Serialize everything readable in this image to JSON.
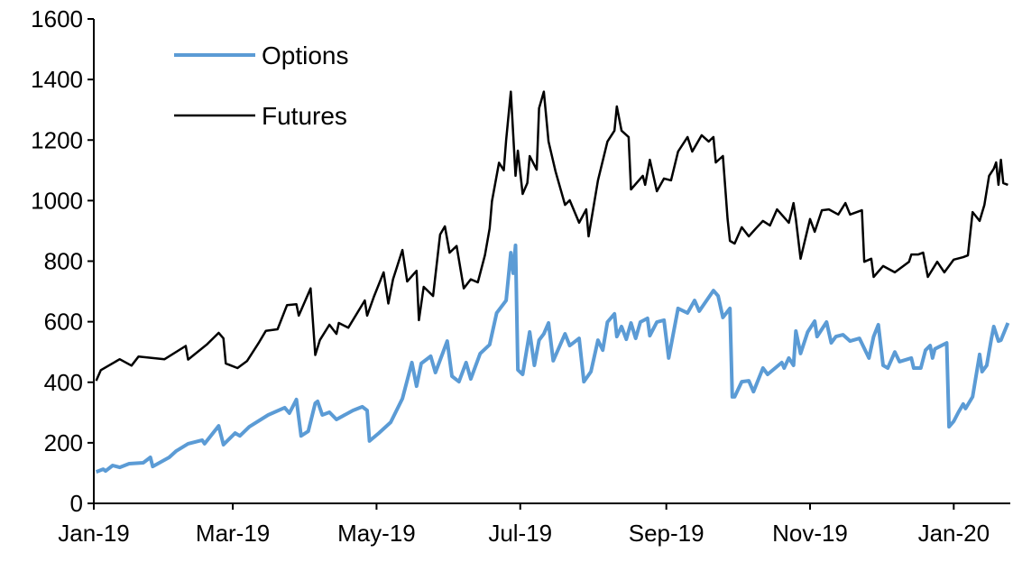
{
  "chart_data": {
    "type": "line",
    "title": "",
    "xlabel": "",
    "ylabel": "",
    "ylim": [
      0,
      1600
    ],
    "yticks": [
      "0",
      "200",
      "400",
      "600",
      "800",
      "1000",
      "1200",
      "1400",
      "1600"
    ],
    "xlim": [
      "2019-01-01",
      "2020-01-25"
    ],
    "xticks": [
      {
        "label": "Jan-19",
        "date": "2019-01-01"
      },
      {
        "label": "Mar-19",
        "date": "2019-03-01"
      },
      {
        "label": "May-19",
        "date": "2019-05-01"
      },
      {
        "label": "Jul-19",
        "date": "2019-07-01"
      },
      {
        "label": "Sep-19",
        "date": "2019-09-01"
      },
      {
        "label": "Nov-19",
        "date": "2019-11-01"
      },
      {
        "label": "Jan-20",
        "date": "2020-01-01"
      }
    ],
    "grid": false,
    "legend_placement": "top-left",
    "series": [
      {
        "name": "Options",
        "color": "#5B9BD5",
        "points": [
          [
            "2019-01-02",
            104
          ],
          [
            "2019-01-05",
            113
          ],
          [
            "2019-01-06",
            107
          ],
          [
            "2019-01-09",
            125
          ],
          [
            "2019-01-12",
            119
          ],
          [
            "2019-01-16",
            131
          ],
          [
            "2019-01-22",
            134
          ],
          [
            "2019-01-25",
            152
          ],
          [
            "2019-01-26",
            122
          ],
          [
            "2019-02-02",
            152
          ],
          [
            "2019-02-05",
            173
          ],
          [
            "2019-02-10",
            197
          ],
          [
            "2019-02-16",
            209
          ],
          [
            "2019-02-17",
            197
          ],
          [
            "2019-02-23",
            256
          ],
          [
            "2019-02-25",
            194
          ],
          [
            "2019-03-02",
            232
          ],
          [
            "2019-03-04",
            223
          ],
          [
            "2019-03-08",
            253
          ],
          [
            "2019-03-16",
            292
          ],
          [
            "2019-03-23",
            316
          ],
          [
            "2019-03-25",
            298
          ],
          [
            "2019-03-28",
            343
          ],
          [
            "2019-03-30",
            223
          ],
          [
            "2019-04-02",
            238
          ],
          [
            "2019-04-05",
            331
          ],
          [
            "2019-04-06",
            337
          ],
          [
            "2019-04-08",
            292
          ],
          [
            "2019-04-11",
            301
          ],
          [
            "2019-04-14",
            277
          ],
          [
            "2019-04-21",
            307
          ],
          [
            "2019-04-25",
            319
          ],
          [
            "2019-04-27",
            307
          ],
          [
            "2019-04-28",
            206
          ],
          [
            "2019-05-02",
            232
          ],
          [
            "2019-05-07",
            268
          ],
          [
            "2019-05-12",
            346
          ],
          [
            "2019-05-16",
            465
          ],
          [
            "2019-05-18",
            387
          ],
          [
            "2019-05-20",
            462
          ],
          [
            "2019-05-24",
            486
          ],
          [
            "2019-05-26",
            432
          ],
          [
            "2019-05-31",
            536
          ],
          [
            "2019-06-02",
            420
          ],
          [
            "2019-06-05",
            402
          ],
          [
            "2019-06-08",
            465
          ],
          [
            "2019-06-10",
            411
          ],
          [
            "2019-06-14",
            495
          ],
          [
            "2019-06-18",
            524
          ],
          [
            "2019-06-21",
            629
          ],
          [
            "2019-06-25",
            670
          ],
          [
            "2019-06-27",
            828
          ],
          [
            "2019-06-28",
            760
          ],
          [
            "2019-06-29",
            852
          ],
          [
            "2019-06-30",
            441
          ],
          [
            "2019-07-02",
            426
          ],
          [
            "2019-07-05",
            566
          ],
          [
            "2019-07-07",
            456
          ],
          [
            "2019-07-09",
            539
          ],
          [
            "2019-07-11",
            560
          ],
          [
            "2019-07-13",
            596
          ],
          [
            "2019-07-15",
            471
          ],
          [
            "2019-07-20",
            560
          ],
          [
            "2019-07-22",
            521
          ],
          [
            "2019-07-26",
            545
          ],
          [
            "2019-07-28",
            402
          ],
          [
            "2019-07-31",
            435
          ],
          [
            "2019-08-03",
            539
          ],
          [
            "2019-08-05",
            506
          ],
          [
            "2019-08-07",
            599
          ],
          [
            "2019-08-10",
            626
          ],
          [
            "2019-08-11",
            551
          ],
          [
            "2019-08-13",
            584
          ],
          [
            "2019-08-15",
            542
          ],
          [
            "2019-08-17",
            596
          ],
          [
            "2019-08-19",
            545
          ],
          [
            "2019-08-21",
            599
          ],
          [
            "2019-08-24",
            611
          ],
          [
            "2019-08-25",
            554
          ],
          [
            "2019-08-28",
            599
          ],
          [
            "2019-08-31",
            605
          ],
          [
            "2019-09-02",
            480
          ],
          [
            "2019-09-06",
            644
          ],
          [
            "2019-09-10",
            629
          ],
          [
            "2019-09-13",
            670
          ],
          [
            "2019-09-15",
            635
          ],
          [
            "2019-09-21",
            703
          ],
          [
            "2019-09-23",
            685
          ],
          [
            "2019-09-25",
            614
          ],
          [
            "2019-09-28",
            644
          ],
          [
            "2019-09-29",
            352
          ],
          [
            "2019-09-30",
            352
          ],
          [
            "2019-10-03",
            402
          ],
          [
            "2019-10-06",
            405
          ],
          [
            "2019-10-08",
            369
          ],
          [
            "2019-10-12",
            447
          ],
          [
            "2019-10-14",
            426
          ],
          [
            "2019-10-20",
            465
          ],
          [
            "2019-10-21",
            447
          ],
          [
            "2019-10-23",
            480
          ],
          [
            "2019-10-25",
            456
          ],
          [
            "2019-10-26",
            569
          ],
          [
            "2019-10-28",
            495
          ],
          [
            "2019-10-31",
            566
          ],
          [
            "2019-11-03",
            602
          ],
          [
            "2019-11-04",
            551
          ],
          [
            "2019-11-08",
            599
          ],
          [
            "2019-11-10",
            530
          ],
          [
            "2019-11-12",
            551
          ],
          [
            "2019-11-15",
            557
          ],
          [
            "2019-11-18",
            536
          ],
          [
            "2019-11-22",
            545
          ],
          [
            "2019-11-26",
            480
          ],
          [
            "2019-11-28",
            551
          ],
          [
            "2019-11-30",
            590
          ],
          [
            "2019-12-02",
            456
          ],
          [
            "2019-12-04",
            447
          ],
          [
            "2019-12-07",
            500
          ],
          [
            "2019-12-09",
            468
          ],
          [
            "2019-12-14",
            480
          ],
          [
            "2019-12-15",
            447
          ],
          [
            "2019-12-18",
            447
          ],
          [
            "2019-12-20",
            506
          ],
          [
            "2019-12-22",
            521
          ],
          [
            "2019-12-23",
            480
          ],
          [
            "2019-12-24",
            510
          ],
          [
            "2019-12-29",
            530
          ],
          [
            "2019-12-30",
            253
          ],
          [
            "2020-01-01",
            271
          ],
          [
            "2020-01-03",
            301
          ],
          [
            "2020-01-05",
            328
          ],
          [
            "2020-01-06",
            313
          ],
          [
            "2020-01-09",
            352
          ],
          [
            "2020-01-12",
            492
          ],
          [
            "2020-01-13",
            435
          ],
          [
            "2020-01-15",
            456
          ],
          [
            "2020-01-17",
            545
          ],
          [
            "2020-01-18",
            584
          ],
          [
            "2020-01-20",
            536
          ],
          [
            "2020-01-21",
            539
          ],
          [
            "2020-01-24",
            596
          ]
        ]
      },
      {
        "name": "Futures",
        "color": "#000000",
        "points": [
          [
            "2019-01-02",
            405
          ],
          [
            "2019-01-04",
            440
          ],
          [
            "2019-01-12",
            476
          ],
          [
            "2019-01-17",
            455
          ],
          [
            "2019-01-20",
            485
          ],
          [
            "2019-01-31",
            476
          ],
          [
            "2019-02-09",
            520
          ],
          [
            "2019-02-10",
            475
          ],
          [
            "2019-02-18",
            525
          ],
          [
            "2019-02-23",
            563
          ],
          [
            "2019-02-25",
            545
          ],
          [
            "2019-02-26",
            462
          ],
          [
            "2019-03-03",
            447
          ],
          [
            "2019-03-07",
            470
          ],
          [
            "2019-03-12",
            530
          ],
          [
            "2019-03-15",
            570
          ],
          [
            "2019-03-20",
            575
          ],
          [
            "2019-03-24",
            655
          ],
          [
            "2019-03-28",
            658
          ],
          [
            "2019-03-29",
            620
          ],
          [
            "2019-04-03",
            710
          ],
          [
            "2019-04-05",
            490
          ],
          [
            "2019-04-07",
            540
          ],
          [
            "2019-04-11",
            590
          ],
          [
            "2019-04-14",
            560
          ],
          [
            "2019-04-15",
            596
          ],
          [
            "2019-04-19",
            580
          ],
          [
            "2019-04-26",
            670
          ],
          [
            "2019-04-27",
            620
          ],
          [
            "2019-04-30",
            685
          ],
          [
            "2019-05-04",
            763
          ],
          [
            "2019-05-06",
            660
          ],
          [
            "2019-05-08",
            740
          ],
          [
            "2019-05-12",
            837
          ],
          [
            "2019-05-14",
            733
          ],
          [
            "2019-05-18",
            768
          ],
          [
            "2019-05-19",
            605
          ],
          [
            "2019-05-21",
            715
          ],
          [
            "2019-05-25",
            685
          ],
          [
            "2019-05-28",
            888
          ],
          [
            "2019-05-30",
            915
          ],
          [
            "2019-06-01",
            828
          ],
          [
            "2019-06-04",
            850
          ],
          [
            "2019-06-07",
            710
          ],
          [
            "2019-06-10",
            740
          ],
          [
            "2019-06-13",
            730
          ],
          [
            "2019-06-16",
            820
          ],
          [
            "2019-06-18",
            908
          ],
          [
            "2019-06-19",
            998
          ],
          [
            "2019-06-22",
            1125
          ],
          [
            "2019-06-24",
            1100
          ],
          [
            "2019-06-25",
            1200
          ],
          [
            "2019-06-27",
            1360
          ],
          [
            "2019-06-29",
            1082
          ],
          [
            "2019-06-30",
            1165
          ],
          [
            "2019-07-02",
            1022
          ],
          [
            "2019-07-04",
            1058
          ],
          [
            "2019-07-05",
            1147
          ],
          [
            "2019-07-08",
            1102
          ],
          [
            "2019-07-09",
            1305
          ],
          [
            "2019-07-11",
            1360
          ],
          [
            "2019-07-13",
            1195
          ],
          [
            "2019-07-16",
            1096
          ],
          [
            "2019-07-20",
            986
          ],
          [
            "2019-07-22",
            1001
          ],
          [
            "2019-07-26",
            927
          ],
          [
            "2019-07-29",
            971
          ],
          [
            "2019-07-30",
            882
          ],
          [
            "2019-08-03",
            1067
          ],
          [
            "2019-08-07",
            1195
          ],
          [
            "2019-08-10",
            1231
          ],
          [
            "2019-08-11",
            1311
          ],
          [
            "2019-08-13",
            1231
          ],
          [
            "2019-08-16",
            1210
          ],
          [
            "2019-08-17",
            1037
          ],
          [
            "2019-08-22",
            1082
          ],
          [
            "2019-08-23",
            1052
          ],
          [
            "2019-08-25",
            1135
          ],
          [
            "2019-08-28",
            1031
          ],
          [
            "2019-08-31",
            1073
          ],
          [
            "2019-09-03",
            1067
          ],
          [
            "2019-09-06",
            1162
          ],
          [
            "2019-09-10",
            1210
          ],
          [
            "2019-09-12",
            1162
          ],
          [
            "2019-09-16",
            1216
          ],
          [
            "2019-09-19",
            1195
          ],
          [
            "2019-09-21",
            1210
          ],
          [
            "2019-09-22",
            1126
          ],
          [
            "2019-09-25",
            1147
          ],
          [
            "2019-09-27",
            939
          ],
          [
            "2019-09-28",
            867
          ],
          [
            "2019-09-30",
            858
          ],
          [
            "2019-10-03",
            912
          ],
          [
            "2019-10-06",
            882
          ],
          [
            "2019-10-09",
            908
          ],
          [
            "2019-10-12",
            933
          ],
          [
            "2019-10-15",
            918
          ],
          [
            "2019-10-18",
            971
          ],
          [
            "2019-10-23",
            927
          ],
          [
            "2019-10-25",
            992
          ],
          [
            "2019-10-26",
            939
          ],
          [
            "2019-10-28",
            808
          ],
          [
            "2019-11-01",
            939
          ],
          [
            "2019-11-03",
            897
          ],
          [
            "2019-11-06",
            968
          ],
          [
            "2019-11-09",
            971
          ],
          [
            "2019-11-13",
            954
          ],
          [
            "2019-11-16",
            992
          ],
          [
            "2019-11-18",
            954
          ],
          [
            "2019-11-23",
            968
          ],
          [
            "2019-11-24",
            798
          ],
          [
            "2019-11-27",
            808
          ],
          [
            "2019-11-28",
            748
          ],
          [
            "2019-12-02",
            784
          ],
          [
            "2019-12-07",
            763
          ],
          [
            "2019-12-13",
            798
          ],
          [
            "2019-12-14",
            822
          ],
          [
            "2019-12-17",
            822
          ],
          [
            "2019-12-19",
            828
          ],
          [
            "2019-12-21",
            748
          ],
          [
            "2019-12-25",
            798
          ],
          [
            "2019-12-28",
            763
          ],
          [
            "2020-01-01",
            805
          ],
          [
            "2020-01-05",
            813
          ],
          [
            "2020-01-07",
            819
          ],
          [
            "2020-01-09",
            962
          ],
          [
            "2020-01-12",
            933
          ],
          [
            "2020-01-14",
            986
          ],
          [
            "2020-01-16",
            1082
          ],
          [
            "2020-01-18",
            1105
          ],
          [
            "2020-01-19",
            1126
          ],
          [
            "2020-01-20",
            1052
          ],
          [
            "2020-01-21",
            1135
          ],
          [
            "2020-01-22",
            1058
          ],
          [
            "2020-01-24",
            1052
          ]
        ]
      }
    ]
  }
}
